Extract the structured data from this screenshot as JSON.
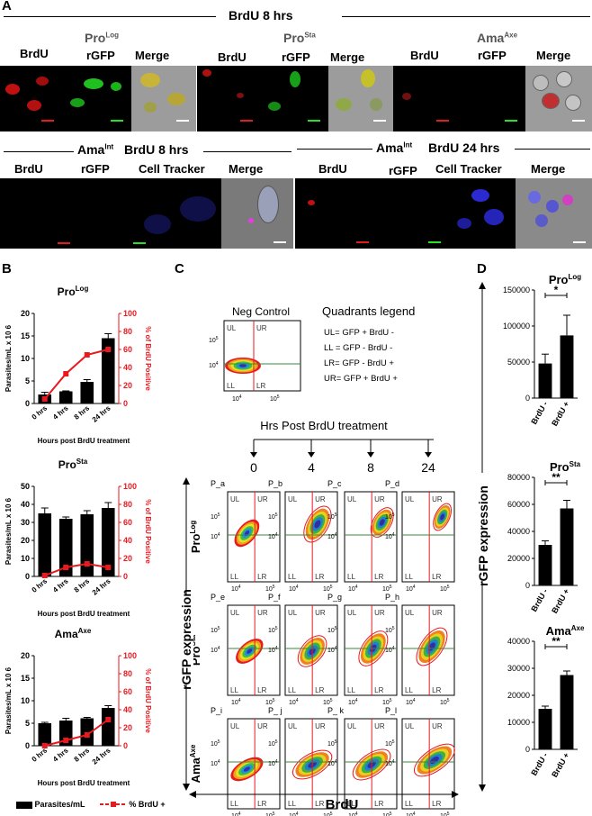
{
  "panel_a": {
    "letter": "A",
    "top_header": "BrdU 8 hrs",
    "row1_groups": [
      {
        "name": "Pro",
        "sup": "Log",
        "channels": [
          "BrdU",
          "rGFP",
          "Merge"
        ]
      },
      {
        "name": "Pro",
        "sup": "Sta",
        "channels": [
          "BrdU",
          "rGFP",
          "Merge"
        ]
      },
      {
        "name": "Ama",
        "sup": "Axe",
        "channels": [
          "BrdU",
          "rGFP",
          "Merge"
        ]
      }
    ],
    "row2_left": {
      "name": "Ama",
      "sup": "Int",
      "condition": "BrdU 8 hrs",
      "channels": [
        "BrdU",
        "rGFP",
        "Cell Tracker",
        "Merge"
      ]
    },
    "row2_right": {
      "name": "Ama",
      "sup": "Int",
      "condition": "BrdU 24 hrs",
      "channels": [
        "BrdU",
        "rGFP",
        "Cell Tracker",
        "Merge"
      ]
    }
  },
  "panel_b": {
    "letter": "B",
    "legend": {
      "bar_label": "Parasites/mL",
      "line_label": "% BrdU +"
    },
    "colors": {
      "bar": "#000000",
      "line": "#e8191f"
    },
    "chart_data": [
      {
        "type": "bar",
        "title_base": "Pro",
        "title_sup": "Log",
        "categories": [
          "0 hrs",
          "4 hrs",
          "8 hrs",
          "24 hrs"
        ],
        "series": [
          {
            "name": "Parasites/mL",
            "values": [
              2.0,
              2.7,
              4.8,
              14.5
            ],
            "errors": [
              0.5,
              0.1,
              0.5,
              1.0
            ],
            "axis": "left"
          },
          {
            "name": "% BrdU +",
            "values": [
              5,
              33,
              54,
              60
            ],
            "errors": [
              1,
              2,
              2,
              2
            ],
            "axis": "right",
            "type": "line"
          }
        ],
        "xlabel": "Hours post BrdU treatment",
        "ylabel": "Parasites/mL x 10 6",
        "y2label": "% of BrdU Positive",
        "ylim": [
          0,
          20
        ],
        "y2lim": [
          0,
          100
        ],
        "yticks": [
          0,
          5,
          10,
          15,
          20
        ],
        "y2ticks": [
          0,
          20,
          40,
          60,
          80,
          100
        ]
      },
      {
        "type": "bar",
        "title_base": "Pro",
        "title_sup": "Sta",
        "categories": [
          "0 hrs",
          "4 hrs",
          "8 hrs",
          "24 hrs"
        ],
        "series": [
          {
            "name": "Parasites/mL",
            "values": [
              35,
              32,
              34.5,
              38
            ],
            "errors": [
              3,
              1,
              2,
              3
            ],
            "axis": "left"
          },
          {
            "name": "% BrdU +",
            "values": [
              1,
              10,
              14,
              10
            ],
            "errors": [
              0.5,
              1,
              1,
              1
            ],
            "axis": "right",
            "type": "line"
          }
        ],
        "xlabel": "Hours post BrdU treatment",
        "ylabel": "Parasites/mL x 10 6",
        "y2label": "% of BrdU Positive",
        "ylim": [
          0,
          50
        ],
        "y2lim": [
          0,
          100
        ],
        "yticks": [
          0,
          10,
          20,
          30,
          40,
          50
        ],
        "y2ticks": [
          0,
          20,
          40,
          60,
          80,
          100
        ]
      },
      {
        "type": "bar",
        "title_base": "Ama",
        "title_sup": "Axe",
        "categories": [
          "0 hrs",
          "4 hrs",
          "8 hrs",
          "24 hrs"
        ],
        "series": [
          {
            "name": "Parasites/mL",
            "values": [
              5.0,
              5.6,
              6.1,
              8.4
            ],
            "errors": [
              0.2,
              0.5,
              0.2,
              0.5
            ],
            "axis": "left"
          },
          {
            "name": "% BrdU +",
            "values": [
              0,
              6,
              12,
              29
            ],
            "errors": [
              0.5,
              1,
              1,
              2
            ],
            "axis": "right",
            "type": "line"
          }
        ],
        "xlabel": "Hours post BrdU treatment",
        "ylabel": "Parasites/mL x 10 6",
        "y2label": "% of BrdU Positive",
        "ylim": [
          0,
          20
        ],
        "y2lim": [
          0,
          100
        ],
        "yticks": [
          0,
          5,
          10,
          15,
          20
        ],
        "y2ticks": [
          0,
          20,
          40,
          60,
          80,
          100
        ]
      }
    ]
  },
  "panel_c": {
    "letter": "C",
    "neg_control": "Neg Control",
    "legend_title": "Quadrants  legend",
    "legend_rows": [
      "UL=  GFP +  BrdU -",
      "LL =  GFP -  BrdU -",
      "LR=  GFP -  BrdU +",
      "UR=  GFP +  BrdU +"
    ],
    "timeline_title": "Hrs Post BrdU treatment",
    "timepoints": [
      "0",
      "4",
      "8",
      "24"
    ],
    "plot_ids": [
      "P_a",
      "P_b",
      "P_c",
      "P_d",
      "P_e",
      "P_f",
      "P_g",
      "P_h",
      "P_i",
      "P_ j",
      "P_ k",
      "P_l"
    ],
    "row_labels": [
      {
        "name": "Pro",
        "sup": "Log"
      },
      {
        "name": "Pro",
        "sup": "Sta"
      },
      {
        "name": "Ama",
        "sup": "Axe"
      }
    ],
    "quadrants": [
      "UL",
      "UR",
      "LL",
      "LR"
    ],
    "yaxis": "rGFP expression",
    "xaxis": "BrdU",
    "tick_labels": {
      "y_hi": "10",
      "y_hi_exp": "5",
      "y_lo": "10",
      "y_lo_exp": "4",
      "x_lo": "10",
      "x_lo_exp": "4",
      "x_hi": "10",
      "x_hi_exp": "5"
    }
  },
  "panel_d": {
    "letter": "D",
    "yaxis": "rGFP expression",
    "chart_data": [
      {
        "type": "bar",
        "title_base": "Pro",
        "title_sup": "Log",
        "categories": [
          "BrdU -",
          "BrdU +"
        ],
        "values": [
          48000,
          87000
        ],
        "errors": [
          13000,
          28000
        ],
        "ylim": [
          0,
          150000
        ],
        "yticks": [
          0,
          50000,
          100000,
          150000
        ],
        "sig": "*"
      },
      {
        "type": "bar",
        "title_base": "Pro",
        "title_sup": "Sta",
        "categories": [
          "BrdU -",
          "BrdU +"
        ],
        "values": [
          30000,
          57000
        ],
        "errors": [
          3000,
          6000
        ],
        "ylim": [
          0,
          80000
        ],
        "yticks": [
          0,
          20000,
          40000,
          60000,
          80000
        ],
        "sig": "**"
      },
      {
        "type": "bar",
        "title_base": "Ama",
        "title_sup": "Axe",
        "categories": [
          "BrdU -",
          "BrdU +"
        ],
        "values": [
          15000,
          27500
        ],
        "errors": [
          1000,
          1500
        ],
        "ylim": [
          0,
          40000
        ],
        "yticks": [
          0,
          10000,
          20000,
          30000,
          40000
        ],
        "sig": "**"
      }
    ]
  }
}
